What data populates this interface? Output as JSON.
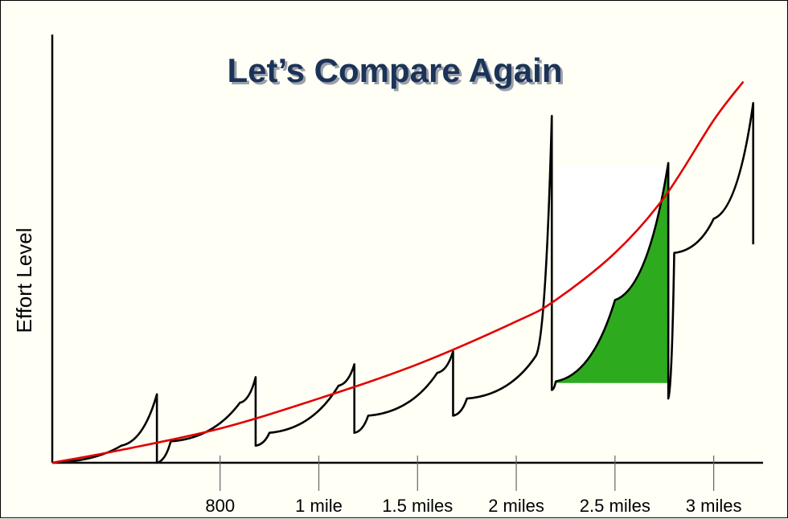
{
  "chart_data": {
    "type": "line",
    "title": "Let’s Compare Again",
    "xlabel": "",
    "ylabel": "Effort Level",
    "x_ticks": [
      "800",
      "1 mile",
      "1.5 miles",
      "2 miles",
      "2.5 miles",
      "3 miles"
    ],
    "x_tick_values": [
      0.5,
      1.0,
      1.5,
      2.0,
      2.5,
      3.0
    ],
    "xlim": [
      -0.35,
      3.25
    ],
    "ylim": [
      0,
      100
    ],
    "grid": false,
    "legend": "none",
    "colors": {
      "background": "#fffff5",
      "title": "#1c3358",
      "smooth_curve": "#e00000",
      "interval_curve": "#000000",
      "highlight_fill": "#2eaa1e",
      "highlight_box": "#ffffff"
    },
    "series": [
      {
        "x": [
          -0.35,
          0.0,
          0.5,
          1.0,
          1.5,
          2.0,
          2.2,
          2.5,
          2.75,
          3.0,
          3.15
        ],
        "y": [
          0,
          3,
          8,
          15,
          23,
          33,
          38,
          49,
          62,
          80,
          89
        ]
      },
      {
        "x": [
          -0.35,
          0.0,
          0.18,
          0.18,
          0.25,
          0.6,
          0.68,
          0.68,
          0.75,
          1.1,
          1.18,
          1.18,
          1.25,
          1.6,
          1.68,
          1.68,
          1.75,
          2.1,
          2.18,
          2.18,
          2.2,
          2.5,
          2.77,
          2.77,
          2.8,
          3.0,
          3.2,
          3.2
        ],
        "y": [
          0,
          4,
          16,
          0,
          5,
          14,
          20,
          4,
          7,
          18,
          23,
          7,
          11,
          21,
          26,
          11,
          15,
          25,
          81,
          17,
          19,
          38,
          70,
          15,
          49,
          57,
          84,
          51
        ]
      }
    ],
    "highlight": {
      "shape": "filled area under interval curve",
      "x_range": [
        2.2,
        2.77
      ]
    }
  }
}
